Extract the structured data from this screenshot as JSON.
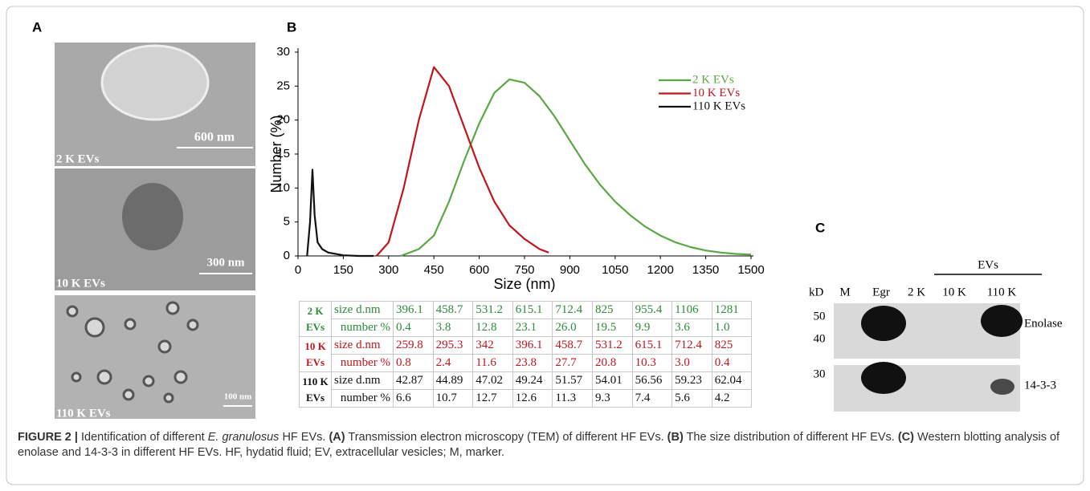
{
  "panel_a": {
    "label": "A",
    "images": [
      {
        "caption": "2 K EVs",
        "scale_bar": "600 nm"
      },
      {
        "caption": "10 K EVs",
        "scale_bar": "300 nm"
      },
      {
        "caption": "110 K EVs",
        "scale_bar": "100 nm"
      }
    ]
  },
  "chart_data": {
    "type": "line",
    "panel_label": "B",
    "xlabel": "Size (nm)",
    "ylabel": "Number (%)",
    "xlim": [
      0,
      1500
    ],
    "ylim": [
      0,
      30
    ],
    "xticks": [
      0,
      150,
      300,
      450,
      600,
      750,
      900,
      1050,
      1200,
      1350,
      1500
    ],
    "yticks": [
      0,
      5,
      10,
      15,
      20,
      25,
      30
    ],
    "legend": "upper right",
    "series": [
      {
        "name": "2 K EVs",
        "color": "#5aa845",
        "x": [
          340,
          400,
          450,
          500,
          550,
          600,
          650,
          700,
          750,
          800,
          850,
          900,
          950,
          1000,
          1050,
          1100,
          1150,
          1200,
          1250,
          1300,
          1350,
          1400,
          1450,
          1500
        ],
        "values": [
          0,
          1,
          3,
          8,
          14,
          19.5,
          24,
          26,
          25.5,
          23.5,
          20.5,
          17,
          13.5,
          10.5,
          8,
          6,
          4.3,
          3,
          2,
          1.3,
          0.8,
          0.5,
          0.3,
          0.2
        ]
      },
      {
        "name": "10 K EVs",
        "color": "#c0161d",
        "x": [
          260,
          300,
          350,
          400,
          450,
          500,
          550,
          600,
          650,
          700,
          750,
          800,
          830
        ],
        "values": [
          0,
          2,
          10,
          20,
          27.8,
          25,
          19,
          13,
          8,
          4.5,
          2.5,
          1,
          0.5
        ]
      },
      {
        "name": "110 K EVs",
        "color": "#111111",
        "x": [
          30,
          40,
          48,
          55,
          65,
          80,
          100,
          150,
          200,
          250
        ],
        "values": [
          0,
          5,
          12.7,
          6,
          2,
          1,
          0.5,
          0.1,
          0,
          0
        ]
      }
    ]
  },
  "table": {
    "groups": [
      {
        "name": "2 K EVs",
        "color": "#2e8b3a",
        "rows": [
          {
            "label": "size d.nm",
            "cells": [
              "396.1",
              "458.7",
              "531.2",
              "615.1",
              "712.4",
              "825",
              "955.4",
              "1106",
              "1281"
            ]
          },
          {
            "label": "number %",
            "cells": [
              "0.4",
              "3.8",
              "12.8",
              "23.1",
              "26.0",
              "19.5",
              "9.9",
              "3.6",
              "1.0"
            ]
          }
        ]
      },
      {
        "name": "10 K EVs",
        "color": "#c0161d",
        "rows": [
          {
            "label": "size d.nm",
            "cells": [
              "259.8",
              "295.3",
              "342",
              "396.1",
              "458.7",
              "531.2",
              "615.1",
              "712.4",
              "825"
            ]
          },
          {
            "label": "number %",
            "cells": [
              "0.8",
              "2.4",
              "11.6",
              "23.8",
              "27.7",
              "20.8",
              "10.3",
              "3.0",
              "0.4"
            ]
          }
        ]
      },
      {
        "name": "110 K EVs",
        "color": "#111111",
        "rows": [
          {
            "label": "size d.nm",
            "cells": [
              "42.87",
              "44.89",
              "47.02",
              "49.24",
              "51.57",
              "54.01",
              "56.56",
              "59.23",
              "62.04"
            ]
          },
          {
            "label": "number %",
            "cells": [
              "6.6",
              "10.7",
              "12.7",
              "12.6",
              "11.3",
              "9.3",
              "7.4",
              "5.6",
              "4.2"
            ]
          }
        ]
      }
    ]
  },
  "panel_c": {
    "label": "C",
    "group_label": "EVs",
    "kd_label": "kD",
    "lanes": [
      "M",
      "Egr",
      "2 K",
      "10 K",
      "110 K"
    ],
    "markers": [
      "50",
      "40",
      "30"
    ],
    "proteins": [
      "Enolase",
      "14-3-3"
    ]
  },
  "caption": [
    "FIGURE 2 |",
    "Identification of different",
    "E. granulosus",
    "HF EVs.",
    "(A)",
    "Transmission electron microscopy (TEM) of different HF EVs.",
    "(B)",
    "The size distribution of different HF EVs.",
    "(C)",
    "Western blotting analysis of enolase and 14-3-3 in different HF EVs. HF, hydatid fluid; EV, extracellular vesicles; M, marker."
  ]
}
